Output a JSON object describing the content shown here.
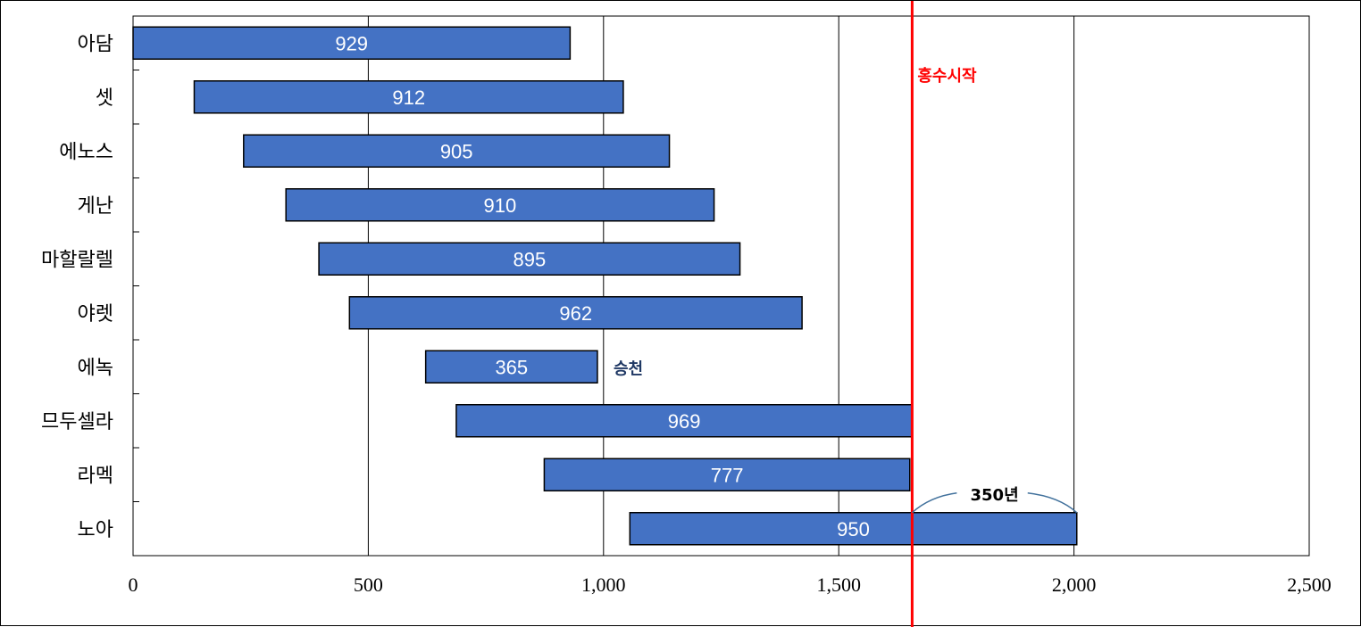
{
  "chart_data": {
    "type": "bar",
    "orientation": "horizontal",
    "stacked_floating": true,
    "categories": [
      "아담",
      "셋",
      "에노스",
      "게난",
      "마할랄렐",
      "야렛",
      "에녹",
      "므두셀라",
      "라멕",
      "노아"
    ],
    "start": [
      0,
      130,
      235,
      325,
      395,
      460,
      622,
      687,
      874,
      1056
    ],
    "values": [
      929,
      912,
      905,
      910,
      895,
      962,
      365,
      969,
      777,
      950
    ],
    "data_labels": [
      "929",
      "912",
      "905",
      "910",
      "895",
      "962",
      "365",
      "969",
      "777",
      "950"
    ],
    "xlim": [
      0,
      2500
    ],
    "xticks": [
      0,
      500,
      1000,
      1500,
      2000,
      2500
    ],
    "xtick_labels": [
      "0",
      "500",
      "1,000",
      "1,500",
      "2,000",
      "2,500"
    ],
    "grid": "vertical",
    "bar_color": "#4472C4",
    "annotations": {
      "flood_line": {
        "x": 1656,
        "label": "홍수시작",
        "color": "#FF0000"
      },
      "enoch_note": {
        "label": "승천",
        "color": "#1F3864"
      },
      "span_note": {
        "from": 1656,
        "to": 2006,
        "label": "350년",
        "color": "#41719C"
      }
    }
  }
}
